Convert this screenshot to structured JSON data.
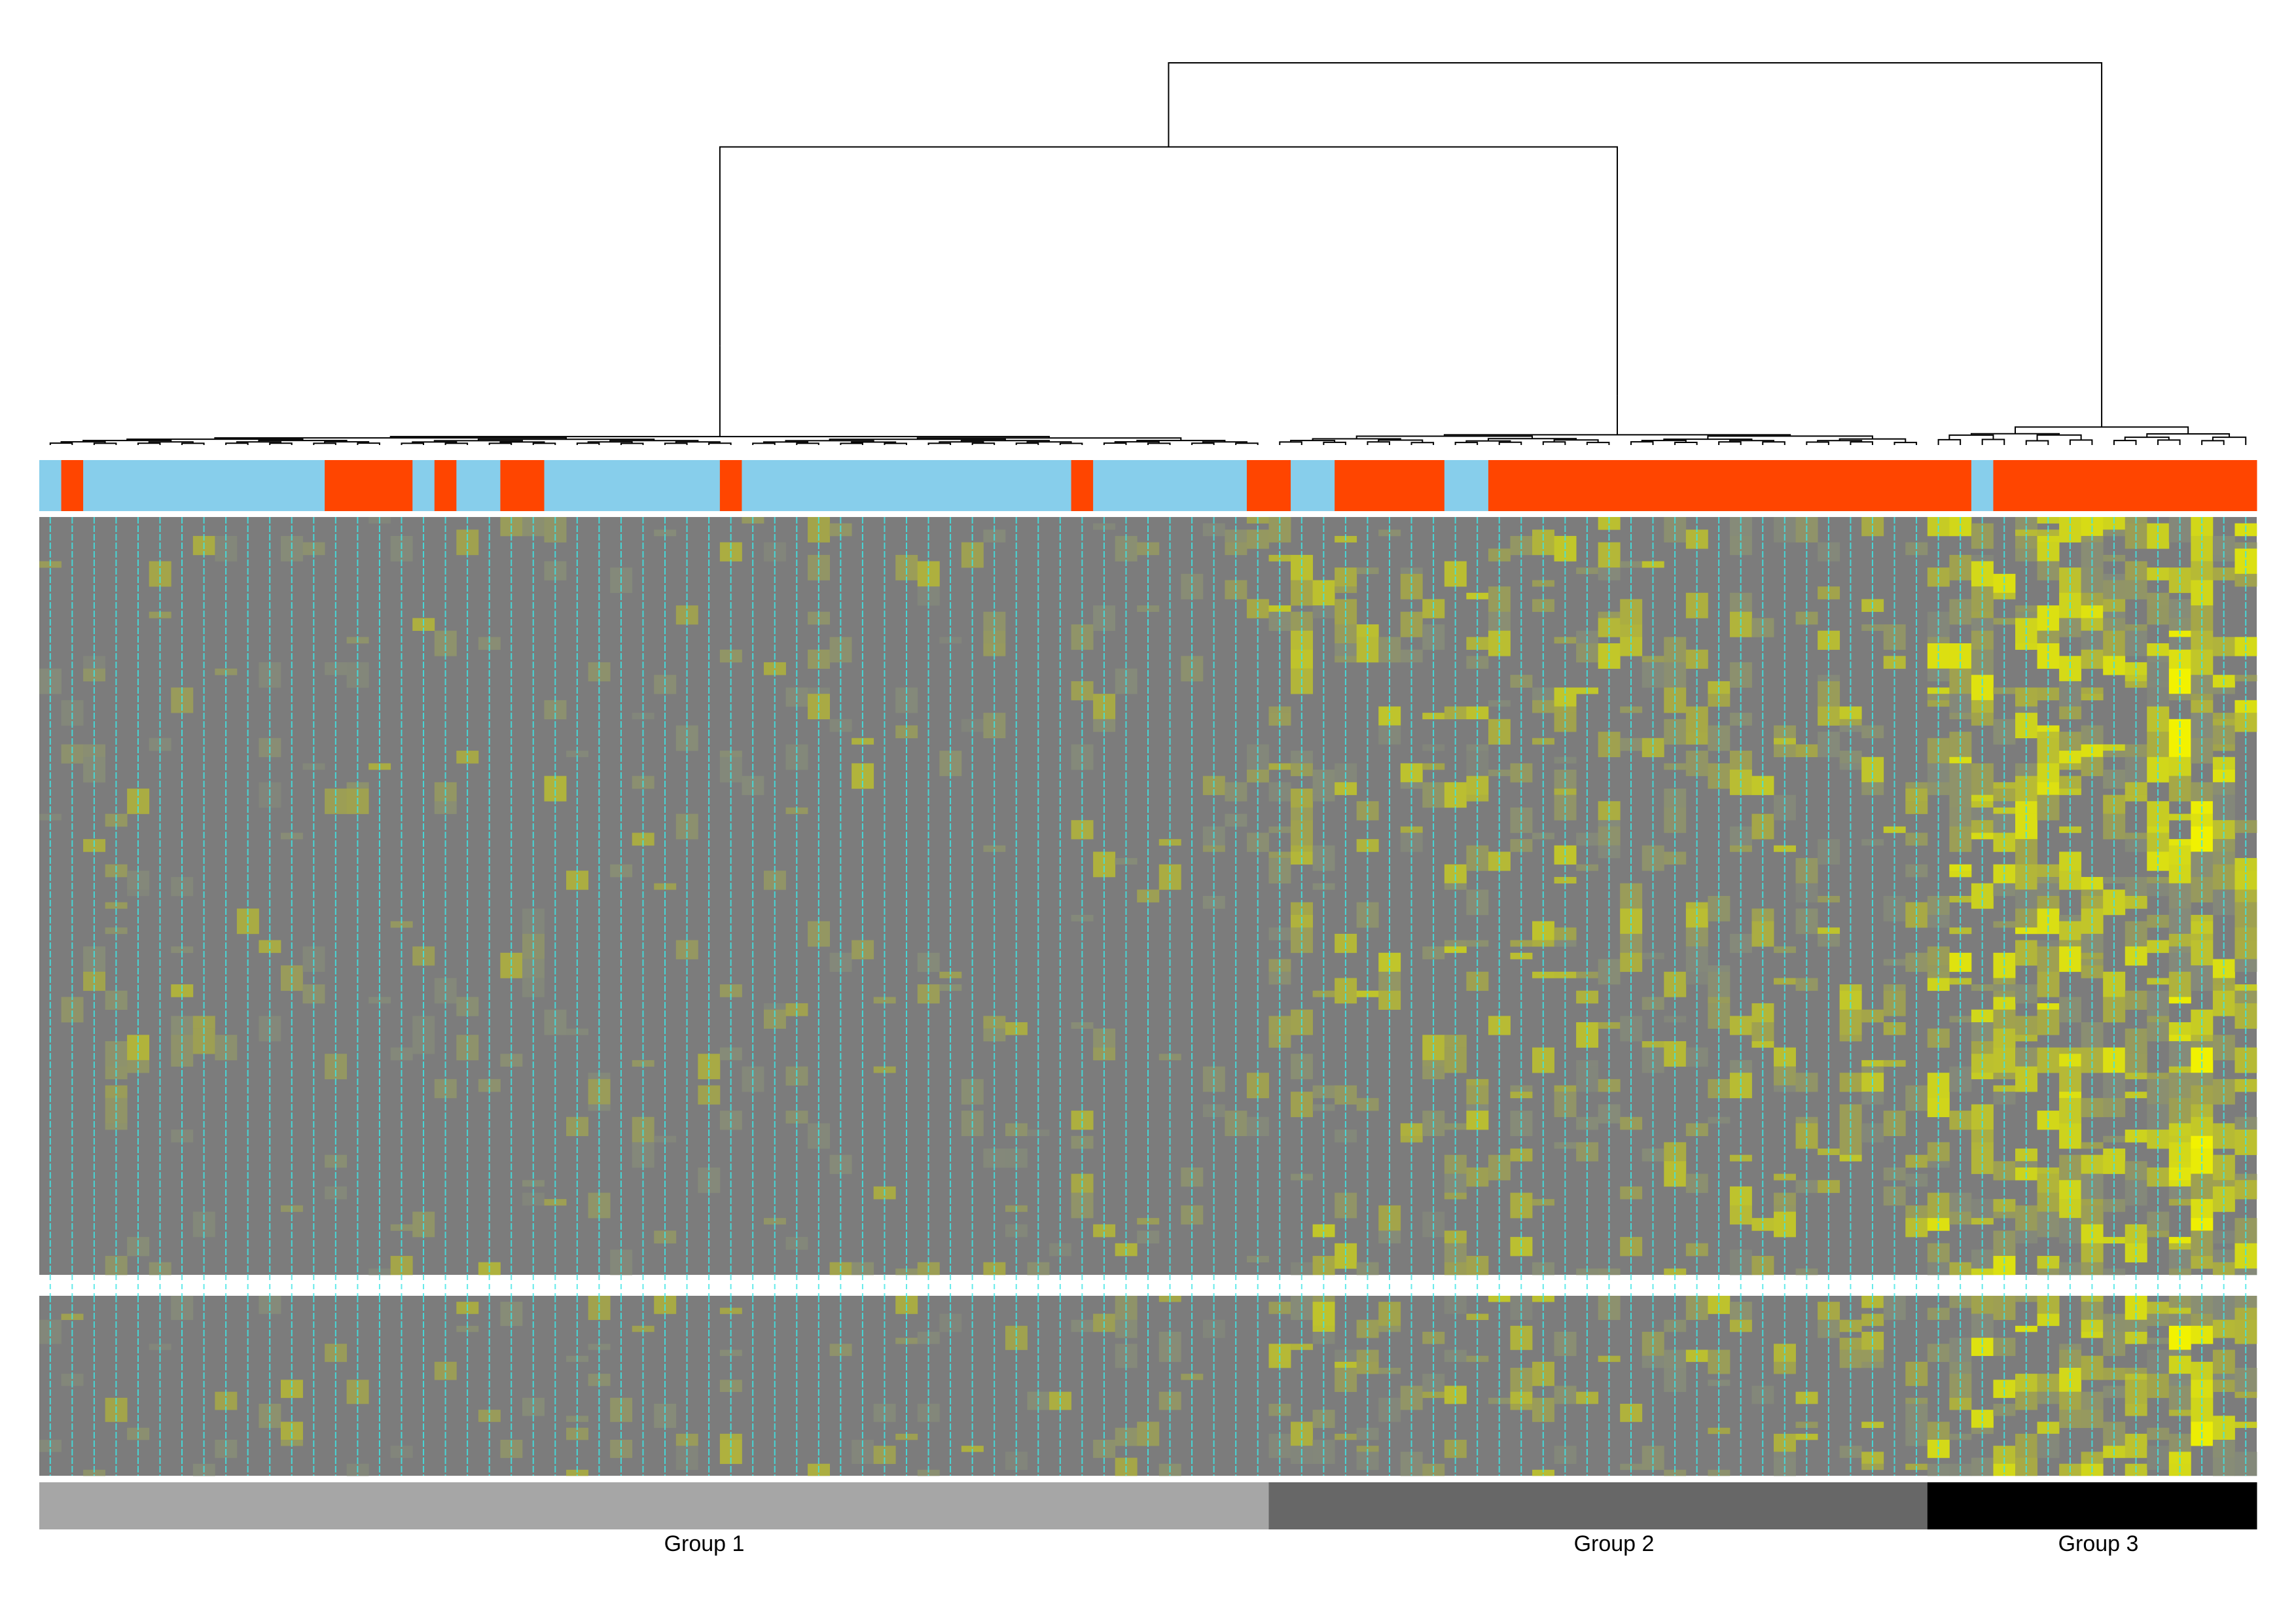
{
  "chart_data": {
    "type": "heatmap",
    "title": "",
    "xlabel": "",
    "ylabel": "",
    "n_columns": 101,
    "grid": true,
    "legend": "none",
    "dendrogram": "top",
    "groups": [
      {
        "label": "Group 1",
        "start": 0,
        "end": 56,
        "color": "#a6a6a6"
      },
      {
        "label": "Group 2",
        "start": 56,
        "end": 86,
        "color": "#676767"
      },
      {
        "label": "Group 3",
        "start": 86,
        "end": 101,
        "color": "#000000"
      }
    ],
    "annotation_colors": {
      "A": "#87ceeb",
      "B": "#ff4500"
    },
    "annotation": [
      {
        "category": "A",
        "start": 0,
        "end": 1
      },
      {
        "category": "B",
        "start": 1,
        "end": 2
      },
      {
        "category": "A",
        "start": 2,
        "end": 13
      },
      {
        "category": "B",
        "start": 13,
        "end": 17
      },
      {
        "category": "A",
        "start": 17,
        "end": 18
      },
      {
        "category": "B",
        "start": 18,
        "end": 19
      },
      {
        "category": "A",
        "start": 19,
        "end": 21
      },
      {
        "category": "B",
        "start": 21,
        "end": 23
      },
      {
        "category": "A",
        "start": 23,
        "end": 31
      },
      {
        "category": "B",
        "start": 31,
        "end": 32
      },
      {
        "category": "A",
        "start": 32,
        "end": 47
      },
      {
        "category": "B",
        "start": 47,
        "end": 48
      },
      {
        "category": "A",
        "start": 48,
        "end": 55
      },
      {
        "category": "B",
        "start": 55,
        "end": 57
      },
      {
        "category": "A",
        "start": 57,
        "end": 59
      },
      {
        "category": "B",
        "start": 59,
        "end": 64
      },
      {
        "category": "A",
        "start": 64,
        "end": 66
      },
      {
        "category": "B",
        "start": 66,
        "end": 88
      },
      {
        "category": "A",
        "start": 88,
        "end": 89
      },
      {
        "category": "B",
        "start": 89,
        "end": 101
      }
    ],
    "blocks": [
      {
        "name": "upper",
        "rows": 120
      },
      {
        "name": "lower",
        "rows": 30
      }
    ],
    "color_scale": [
      "#7c7c7c",
      "#858a7a",
      "#a3a44a",
      "#ccd21e",
      "#f2f200"
    ],
    "column_intensity": {
      "groups": [
        0.06,
        0.24,
        0.55
      ],
      "hot_columns": [
        97,
        98
      ]
    },
    "grid_color": "#3ee5e5",
    "dendrogram_merges": [
      {
        "from": 0,
        "to": 56,
        "height": 0.26
      },
      {
        "from": 56,
        "to": 86,
        "height": 0.13
      },
      {
        "from": 86,
        "to": 101,
        "height": 0.53
      },
      {
        "from": 0,
        "to": 86,
        "height": 0.78
      },
      {
        "from": 0,
        "to": 101,
        "height": 1.0
      }
    ],
    "dendrogram_leaf_heights": {
      "groups": [
        0.01,
        0.035,
        0.08
      ]
    }
  },
  "labels": {
    "group1": "Group 1",
    "group2": "Group 2",
    "group3": "Group 3"
  }
}
